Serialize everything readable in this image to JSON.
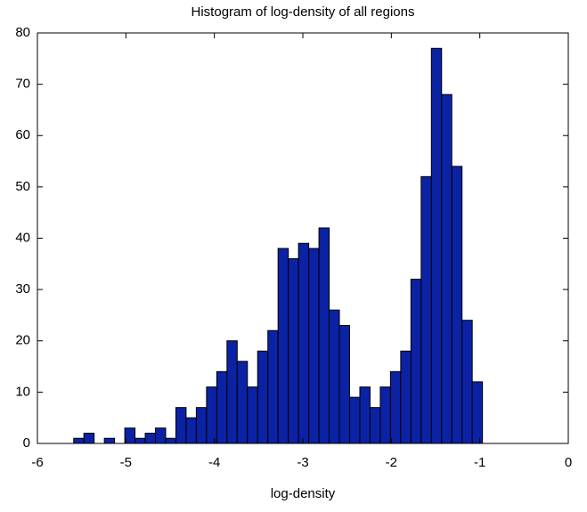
{
  "chart_data": {
    "type": "histogram",
    "title": "Histogram of log-density of all regions",
    "x_label": "log-density",
    "bins": [
      -5.59,
      -5.4745,
      -5.359,
      -5.2435,
      -5.128,
      -5.0125,
      -4.897,
      -4.7815,
      -4.666,
      -4.5505,
      -4.435,
      -4.3195,
      -4.204,
      -4.0885,
      -3.973,
      -3.8575,
      -3.742,
      -3.6265,
      -3.511,
      -3.3955,
      -3.28,
      -3.1645,
      -3.049,
      -2.9335,
      -2.818,
      -2.7025,
      -2.587,
      -2.4715,
      -2.356,
      -2.2405,
      -2.125,
      -2.0095,
      -1.894,
      -1.7785,
      -1.663,
      -1.5475,
      -1.432,
      -1.3165,
      -1.201,
      -1.0855,
      -0.97
    ],
    "values": [
      1,
      2,
      0,
      1,
      0,
      3,
      1,
      2,
      3,
      1,
      7,
      5,
      7,
      11,
      14,
      20,
      16,
      11,
      18,
      22,
      38,
      36,
      39,
      38,
      42,
      26,
      23,
      9,
      11,
      7,
      11,
      14,
      18,
      32,
      52,
      77,
      68,
      54,
      24,
      12
    ],
    "color": "#0b22a4",
    "xlim": [
      -6,
      0
    ],
    "xticks": [
      -6,
      -5,
      -4,
      -3,
      -2,
      -1,
      0
    ],
    "ylim": [
      0,
      80
    ],
    "yticks": [
      0,
      10,
      20,
      30,
      40,
      50,
      60,
      70,
      80
    ]
  }
}
